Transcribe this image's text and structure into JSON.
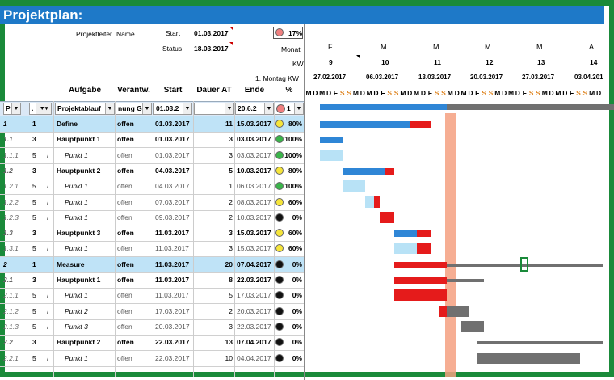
{
  "title": "Projektplan:",
  "header": {
    "projektleiter_label": "Projektleiter",
    "projektleiter_value": "Name",
    "start_label": "Start",
    "start_value": "01.03.2017",
    "status_label": "Status",
    "status_value": "18.03.2017",
    "progress": "17%",
    "monat_label": "Monat",
    "kw_label": "KW",
    "montag_label": "1. Montag KW"
  },
  "timeline": {
    "months": [
      "F",
      "M",
      "M",
      "M",
      "M",
      "A"
    ],
    "kws": [
      "9",
      "10",
      "11",
      "12",
      "13",
      "14"
    ],
    "mondays": [
      "27.02.2017",
      "06.03.2017",
      "13.03.2017",
      "20.03.2017",
      "27.03.2017",
      "03.04.201"
    ],
    "days": [
      "M",
      "D",
      "M",
      "D",
      "F",
      "S",
      "S",
      "M",
      "D",
      "M",
      "D",
      "F",
      "S",
      "S",
      "M",
      "D",
      "M",
      "D",
      "F",
      "S",
      "S",
      "M",
      "D",
      "M",
      "D",
      "F",
      "S",
      "S",
      "M",
      "D",
      "M",
      "D",
      "F",
      "S",
      "S",
      "M",
      "D",
      "M",
      "D",
      "F",
      "S",
      "S",
      "M",
      "D"
    ]
  },
  "columns": {
    "aufgabe": "Aufgabe",
    "verantw": "Verantw.",
    "start": "Start",
    "dauer": "Dauer AT",
    "ende": "Ende",
    "pct": "%"
  },
  "filters": {
    "aufgabe": "Projektablauf",
    "verantw": "nung Ge",
    "start": "01.03.2",
    "ende": "20.6.2",
    "pct": "1"
  },
  "rows": [
    {
      "id": "1",
      "lvl": "1",
      "task": "Define",
      "resp": "offen",
      "start": "01.03.2017",
      "dur": "11",
      "end": "15.03.2017",
      "pct": "80%",
      "status": "yellow",
      "type": "phase"
    },
    {
      "id": "1.1",
      "lvl": "3",
      "task": "Hauptpunkt 1",
      "resp": "offen",
      "start": "01.03.2017",
      "dur": "3",
      "end": "03.03.2017",
      "pct": "100%",
      "status": "green",
      "type": "main"
    },
    {
      "id": "1.1.1",
      "lvl": "5",
      "task": "Punkt 1",
      "resp": "offen",
      "start": "01.03.2017",
      "dur": "3",
      "end": "03.03.2017",
      "pct": "100%",
      "status": "green",
      "type": "sub"
    },
    {
      "id": "1.2",
      "lvl": "3",
      "task": "Hauptpunkt 2",
      "resp": "offen",
      "start": "04.03.2017",
      "dur": "5",
      "end": "10.03.2017",
      "pct": "80%",
      "status": "yellow",
      "type": "main"
    },
    {
      "id": "1.2.1",
      "lvl": "5",
      "task": "Punkt 1",
      "resp": "offen",
      "start": "04.03.2017",
      "dur": "1",
      "end": "06.03.2017",
      "pct": "100%",
      "status": "green",
      "type": "sub"
    },
    {
      "id": "1.2.2",
      "lvl": "5",
      "task": "Punkt 1",
      "resp": "offen",
      "start": "07.03.2017",
      "dur": "2",
      "end": "08.03.2017",
      "pct": "60%",
      "status": "yellow",
      "type": "sub"
    },
    {
      "id": "1.2.3",
      "lvl": "5",
      "task": "Punkt 1",
      "resp": "offen",
      "start": "09.03.2017",
      "dur": "2",
      "end": "10.03.2017",
      "pct": "0%",
      "status": "black",
      "type": "sub"
    },
    {
      "id": "1.3",
      "lvl": "3",
      "task": "Hauptpunkt 3",
      "resp": "offen",
      "start": "11.03.2017",
      "dur": "3",
      "end": "15.03.2017",
      "pct": "60%",
      "status": "yellow",
      "type": "main"
    },
    {
      "id": "1.3.1",
      "lvl": "5",
      "task": "Punkt 1",
      "resp": "offen",
      "start": "11.03.2017",
      "dur": "3",
      "end": "15.03.2017",
      "pct": "60%",
      "status": "yellow",
      "type": "sub"
    },
    {
      "id": "2",
      "lvl": "1",
      "task": "Measure",
      "resp": "offen",
      "start": "11.03.2017",
      "dur": "20",
      "end": "07.04.2017",
      "pct": "0%",
      "status": "black",
      "type": "phase"
    },
    {
      "id": "2.1",
      "lvl": "3",
      "task": "Hauptpunkt 1",
      "resp": "offen",
      "start": "11.03.2017",
      "dur": "8",
      "end": "22.03.2017",
      "pct": "0%",
      "status": "black",
      "type": "main"
    },
    {
      "id": "2.1.1",
      "lvl": "5",
      "task": "Punkt 1",
      "resp": "offen",
      "start": "11.03.2017",
      "dur": "5",
      "end": "17.03.2017",
      "pct": "0%",
      "status": "black",
      "type": "sub"
    },
    {
      "id": "2.1.2",
      "lvl": "5",
      "task": "Punkt 2",
      "resp": "offen",
      "start": "17.03.2017",
      "dur": "2",
      "end": "20.03.2017",
      "pct": "0%",
      "status": "black",
      "type": "sub"
    },
    {
      "id": "2.1.3",
      "lvl": "5",
      "task": "Punkt 3",
      "resp": "offen",
      "start": "20.03.2017",
      "dur": "3",
      "end": "22.03.2017",
      "pct": "0%",
      "status": "black",
      "type": "sub"
    },
    {
      "id": "2.2",
      "lvl": "3",
      "task": "Hauptpunkt 2",
      "resp": "offen",
      "start": "22.03.2017",
      "dur": "13",
      "end": "07.04.2017",
      "pct": "0%",
      "status": "black",
      "type": "main"
    },
    {
      "id": "2.2.1",
      "lvl": "5",
      "task": "Punkt 1",
      "resp": "offen",
      "start": "22.03.2017",
      "dur": "10",
      "end": "04.04.2017",
      "pct": "0%",
      "status": "black",
      "type": "sub"
    }
  ],
  "colors": {
    "title_bg": "#1e79c8",
    "phase_bg": "#bfe3f7",
    "done": "#2f86d6",
    "done_light": "#b8e2f6",
    "late": "#e51b1b",
    "future": "#707070",
    "today": "#f5a080",
    "border": "#1a8a3a"
  }
}
